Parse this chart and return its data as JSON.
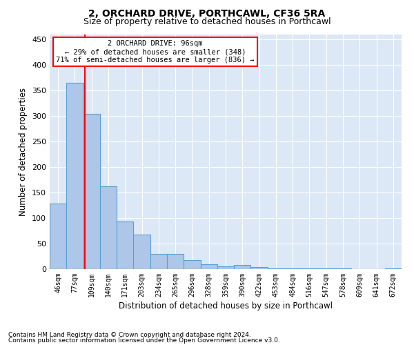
{
  "title": "2, ORCHARD DRIVE, PORTHCAWL, CF36 5RA",
  "subtitle": "Size of property relative to detached houses in Porthcawl",
  "xlabel": "Distribution of detached houses by size in Porthcawl",
  "ylabel": "Number of detached properties",
  "categories": [
    "46sqm",
    "77sqm",
    "109sqm",
    "140sqm",
    "171sqm",
    "203sqm",
    "234sqm",
    "265sqm",
    "296sqm",
    "328sqm",
    "359sqm",
    "390sqm",
    "422sqm",
    "453sqm",
    "484sqm",
    "516sqm",
    "547sqm",
    "578sqm",
    "609sqm",
    "641sqm",
    "672sqm"
  ],
  "values": [
    128,
    365,
    305,
    163,
    93,
    68,
    30,
    30,
    18,
    9,
    5,
    8,
    4,
    2,
    2,
    1,
    1,
    1,
    0,
    0,
    1
  ],
  "bar_color": "#aec6e8",
  "bar_edge_color": "#5a9fd4",
  "grid_color": "#c8d8ec",
  "background_color": "#dce8f5",
  "ylim": [
    0,
    460
  ],
  "yticks": [
    0,
    50,
    100,
    150,
    200,
    250,
    300,
    350,
    400,
    450
  ],
  "red_line_x": 1.62,
  "annotation_line1": "2 ORCHARD DRIVE: 96sqm",
  "annotation_line2": "← 29% of detached houses are smaller (348)",
  "annotation_line3": "71% of semi-detached houses are larger (836) →",
  "footnote1": "Contains HM Land Registry data © Crown copyright and database right 2024.",
  "footnote2": "Contains public sector information licensed under the Open Government Licence v3.0."
}
